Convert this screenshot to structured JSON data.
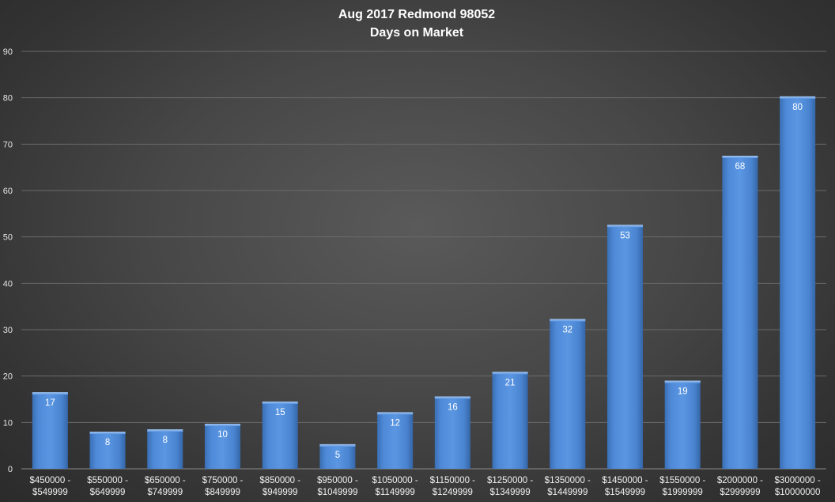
{
  "chart_data": {
    "type": "bar",
    "title": "Aug 2017 Redmond 98052",
    "subtitle": "Days on Market",
    "xlabel": "",
    "ylabel": "",
    "ylim": [
      0,
      90
    ],
    "yticks": [
      0,
      10,
      20,
      30,
      40,
      50,
      60,
      70,
      80,
      90
    ],
    "grid": true,
    "legend": "none",
    "bar_color": "#4a86d4",
    "categories": [
      [
        "$450000 -",
        "$549999"
      ],
      [
        "$550000 -",
        "$649999"
      ],
      [
        "$650000 -",
        "$749999"
      ],
      [
        "$750000 -",
        "$849999"
      ],
      [
        "$850000 -",
        "$949999"
      ],
      [
        "$950000 -",
        "$1049999"
      ],
      [
        "$1050000 -",
        "$1149999"
      ],
      [
        "$1150000 -",
        "$1249999"
      ],
      [
        "$1250000 -",
        "$1349999"
      ],
      [
        "$1350000 -",
        "$1449999"
      ],
      [
        "$1450000 -",
        "$1549999"
      ],
      [
        "$1550000 -",
        "$1999999"
      ],
      [
        "$2000000 -",
        "$2999999"
      ],
      [
        "$3000000 -",
        "$10000000"
      ]
    ],
    "values": [
      16.5,
      8,
      8.5,
      9.7,
      14.5,
      5.3,
      12.2,
      15.6,
      20.9,
      32.3,
      52.6,
      19,
      67.5,
      80.3
    ],
    "data_labels": [
      "17",
      "8",
      "8",
      "10",
      "15",
      "5",
      "12",
      "16",
      "21",
      "32",
      "53",
      "19",
      "68",
      "80"
    ]
  }
}
